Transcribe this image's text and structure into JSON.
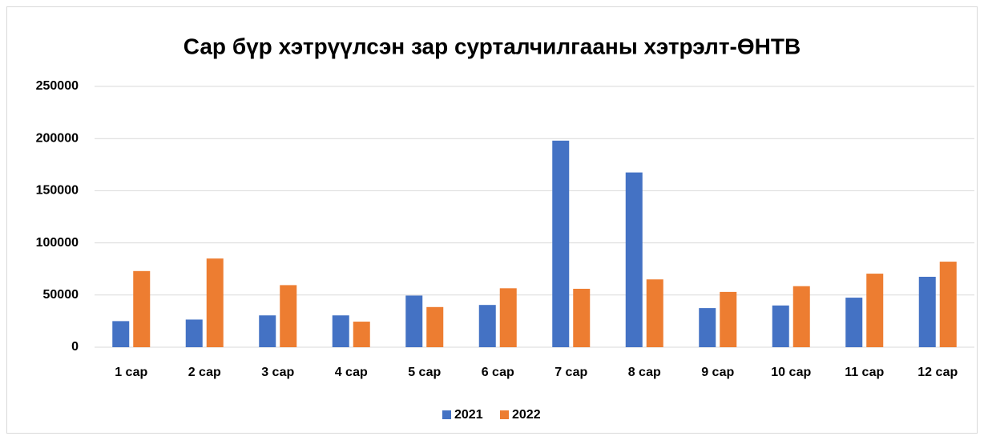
{
  "chart_data": {
    "type": "bar",
    "title": "Сар бүр хэтрүүлсэн зар сурталчилгааны хэтрэлт-ӨНТВ",
    "categories": [
      "1 сар",
      "2 сар",
      "3 сар",
      "4 сар",
      "5 сар",
      "6 сар",
      "7 сар",
      "8 сар",
      "9 сар",
      "10 сар",
      "11 сар",
      "12 сар"
    ],
    "series": [
      {
        "name": "2021",
        "color": "#4472c4",
        "values": [
          25000,
          26500,
          30500,
          30500,
          49500,
          40500,
          198000,
          167500,
          37500,
          40000,
          47500,
          67500
        ]
      },
      {
        "name": "2022",
        "color": "#ed7d31",
        "values": [
          73000,
          85000,
          59500,
          24500,
          38500,
          56500,
          56000,
          65000,
          53000,
          58500,
          70500,
          82000
        ]
      }
    ],
    "ylim": [
      0,
      250000
    ],
    "yticks": [
      0,
      50000,
      100000,
      150000,
      200000,
      250000
    ],
    "grid": true,
    "legend": "bottom"
  }
}
